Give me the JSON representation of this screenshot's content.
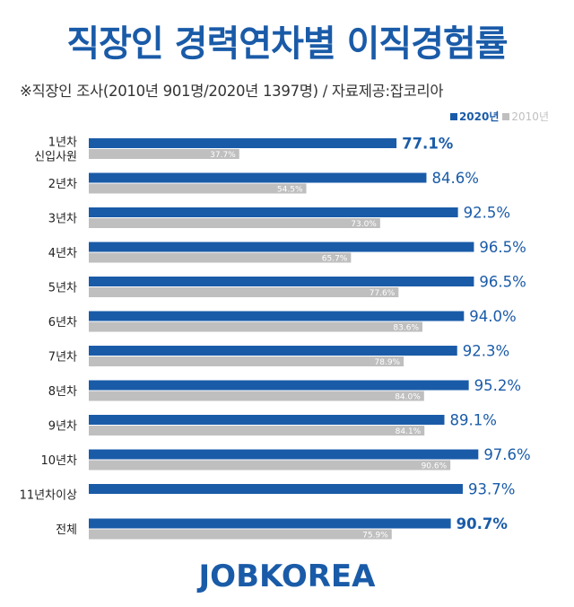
{
  "title": "직장인 경력연차별 이직경험률",
  "subtitle": "※직장인 조사(2010년 901명/2020년 1397명) / 자료제공:잡코리아",
  "logo_text": "JOBKOREA",
  "colors": {
    "series_2020": "#1a5ba8",
    "series_2010": "#bfbfbf",
    "value_2020": "#1a5ba8",
    "value_2010": "#ffffff",
    "title": "#1a5ba8"
  },
  "chart_data": {
    "type": "bar",
    "orientation": "horizontal",
    "title": "직장인 경력연차별 이직경험률",
    "subtitle": "※직장인 조사(2010년 901명/2020년 1397명) / 자료제공:잡코리아",
    "categories": [
      "1년차\n신입사원",
      "2년차",
      "3년차",
      "4년차",
      "5년차",
      "6년차",
      "7년차",
      "8년차",
      "9년차",
      "10년차",
      "11년차이상",
      "전체"
    ],
    "series": [
      {
        "name": "2020년",
        "values": [
          77.1,
          84.6,
          92.5,
          96.5,
          96.5,
          94.0,
          92.3,
          95.2,
          89.1,
          97.6,
          93.7,
          90.7
        ]
      },
      {
        "name": "2010년",
        "values": [
          37.7,
          54.5,
          73.0,
          65.7,
          77.6,
          83.6,
          78.9,
          84.0,
          84.1,
          90.6,
          null,
          75.9
        ]
      }
    ],
    "value_labels": {
      "2020년": [
        "77.1%",
        "84.6%",
        "92.5%",
        "96.5%",
        "96.5%",
        "94.0%",
        "92.3%",
        "95.2%",
        "89.1%",
        "97.6%",
        "93.7%",
        "90.7%"
      ],
      "2010년": [
        "37.7%",
        "54.5%",
        "73.0%",
        "65.7%",
        "77.6%",
        "83.6%",
        "78.9%",
        "84.0%",
        "84.1%",
        "90.6%",
        "",
        "75.9%"
      ]
    },
    "bold_2020_labels": [
      true,
      false,
      false,
      false,
      false,
      false,
      false,
      false,
      false,
      false,
      false,
      true
    ],
    "xlim": [
      0,
      100
    ],
    "legend_position": "top-right",
    "grid": false
  }
}
